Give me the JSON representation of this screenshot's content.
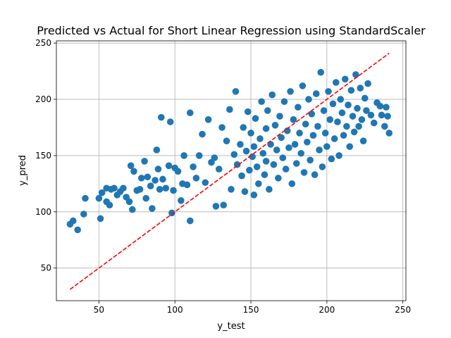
{
  "chart_data": {
    "type": "scatter",
    "title": "Predicted vs Actual for Short Linear Regression using StandardScaler",
    "xlabel": "y_test",
    "ylabel": "y_pred",
    "xlim": [
      22,
      252
    ],
    "ylim": [
      21,
      252
    ],
    "xticks": [
      50,
      100,
      150,
      200,
      250
    ],
    "yticks": [
      50,
      100,
      150,
      200,
      250
    ],
    "grid": true,
    "colors": {
      "points": "#1f77b4",
      "line": "#ff0000"
    },
    "reference_line": {
      "style": "dashed",
      "x": [
        31,
        241
      ],
      "y": [
        31,
        241
      ]
    },
    "series": [
      {
        "points": [
          [
            31,
            89
          ],
          [
            33,
            92
          ],
          [
            36,
            84
          ],
          [
            41,
            112
          ],
          [
            40,
            98
          ],
          [
            50,
            112
          ],
          [
            52,
            117
          ],
          [
            51,
            94
          ],
          [
            55,
            121
          ],
          [
            55,
            109
          ],
          [
            57,
            106
          ],
          [
            58,
            120
          ],
          [
            60,
            121
          ],
          [
            62,
            115
          ],
          [
            64,
            118
          ],
          [
            66,
            121
          ],
          [
            68,
            113
          ],
          [
            70,
            109
          ],
          [
            71,
            141
          ],
          [
            73,
            136
          ],
          [
            72,
            102
          ],
          [
            75,
            119
          ],
          [
            77,
            120
          ],
          [
            78,
            130
          ],
          [
            80,
            145
          ],
          [
            82,
            131
          ],
          [
            81,
            112
          ],
          [
            84,
            123
          ],
          [
            85,
            103
          ],
          [
            87,
            128
          ],
          [
            89,
            138
          ],
          [
            88,
            155
          ],
          [
            90,
            120
          ],
          [
            91,
            184
          ],
          [
            92,
            129
          ],
          [
            94,
            121
          ],
          [
            96,
            141
          ],
          [
            97,
            180
          ],
          [
            98,
            99
          ],
          [
            99,
            119
          ],
          [
            100,
            139
          ],
          [
            102,
            136
          ],
          [
            105,
            125
          ],
          [
            104,
            110
          ],
          [
            106,
            150
          ],
          [
            108,
            124
          ],
          [
            110,
            188
          ],
          [
            110,
            92
          ],
          [
            112,
            140
          ],
          [
            114,
            130
          ],
          [
            116,
            150
          ],
          [
            118,
            169
          ],
          [
            120,
            126
          ],
          [
            122,
            182
          ],
          [
            124,
            144
          ],
          [
            126,
            148
          ],
          [
            127,
            105
          ],
          [
            129,
            138
          ],
          [
            131,
            175
          ],
          [
            132,
            106
          ],
          [
            134,
            163
          ],
          [
            136,
            191
          ],
          [
            137,
            120
          ],
          [
            139,
            151
          ],
          [
            140,
            207
          ],
          [
            141,
            142
          ],
          [
            143,
            160
          ],
          [
            144,
            132
          ],
          [
            145,
            175
          ],
          [
            146,
            118
          ],
          [
            147,
            154
          ],
          [
            148,
            189
          ],
          [
            149,
            137
          ],
          [
            150,
            170
          ],
          [
            151,
            149
          ],
          [
            152,
            158
          ],
          [
            152,
            115
          ],
          [
            153,
            183
          ],
          [
            154,
            140
          ],
          [
            155,
            125
          ],
          [
            156,
            165
          ],
          [
            157,
            198
          ],
          [
            158,
            152
          ],
          [
            159,
            133
          ],
          [
            160,
            174
          ],
          [
            160,
            145
          ],
          [
            161,
            190
          ],
          [
            162,
            120
          ],
          [
            163,
            160
          ],
          [
            164,
            204
          ],
          [
            165,
            142
          ],
          [
            166,
            177
          ],
          [
            167,
            155
          ],
          [
            168,
            130
          ],
          [
            169,
            185
          ],
          [
            170,
            166
          ],
          [
            171,
            148
          ],
          [
            172,
            198
          ],
          [
            173,
            138
          ],
          [
            174,
            172
          ],
          [
            175,
            157
          ],
          [
            176,
            207
          ],
          [
            177,
            125
          ],
          [
            178,
            182
          ],
          [
            179,
            160
          ],
          [
            180,
            143
          ],
          [
            181,
            193
          ],
          [
            182,
            170
          ],
          [
            183,
            152
          ],
          [
            184,
            212
          ],
          [
            185,
            135
          ],
          [
            186,
            178
          ],
          [
            187,
            162
          ],
          [
            188,
            200
          ],
          [
            189,
            146
          ],
          [
            190,
            187
          ],
          [
            191,
            168
          ],
          [
            192,
            133
          ],
          [
            193,
            205
          ],
          [
            194,
            176
          ],
          [
            195,
            155
          ],
          [
            196,
            224
          ],
          [
            197,
            140
          ],
          [
            198,
            190
          ],
          [
            199,
            170
          ],
          [
            200,
            158
          ],
          [
            201,
            207
          ],
          [
            202,
            182
          ],
          [
            203,
            147
          ],
          [
            204,
            196
          ],
          [
            205,
            165
          ],
          [
            206,
            215
          ],
          [
            207,
            180
          ],
          [
            208,
            150
          ],
          [
            209,
            200
          ],
          [
            210,
            188
          ],
          [
            211,
            168
          ],
          [
            212,
            218
          ],
          [
            213,
            176
          ],
          [
            214,
            195
          ],
          [
            215,
            158
          ],
          [
            216,
            208
          ],
          [
            217,
            185
          ],
          [
            218,
            171
          ],
          [
            219,
            222
          ],
          [
            220,
            192
          ],
          [
            221,
            176
          ],
          [
            222,
            210
          ],
          [
            223,
            182
          ],
          [
            224,
            163
          ],
          [
            225,
            201
          ],
          [
            226,
            190
          ],
          [
            227,
            214
          ],
          [
            229,
            186
          ],
          [
            231,
            179
          ],
          [
            233,
            197
          ],
          [
            235,
            194
          ],
          [
            236,
            186
          ],
          [
            238,
            176
          ],
          [
            239,
            193
          ],
          [
            240,
            185
          ],
          [
            241,
            170
          ]
        ]
      }
    ]
  }
}
